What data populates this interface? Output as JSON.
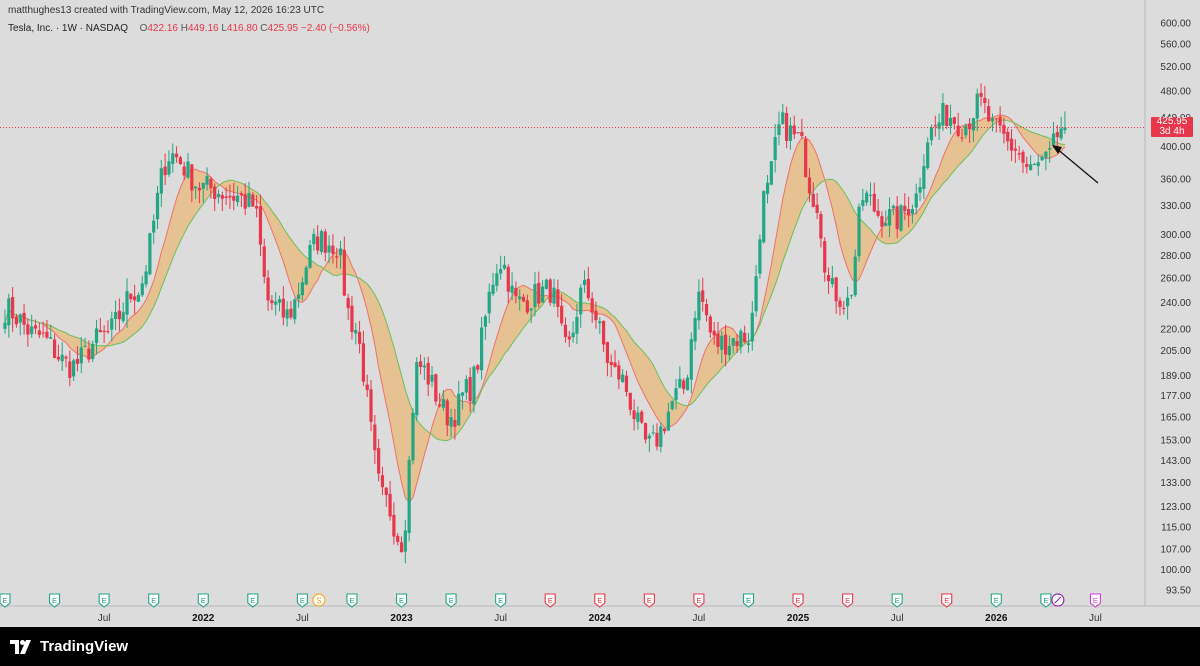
{
  "header": {
    "created": "matthughes13 created with TradingView.com, May 12, 2026 16:23 UTC",
    "symbol": "Tesla, Inc. · 1W · NASDAQ",
    "o_label": "O",
    "o_value": "422.16",
    "h_label": "H",
    "h_value": "449.16",
    "l_label": "L",
    "l_value": "416.80",
    "c_label": "C",
    "c_value": "425.95",
    "change": "−2.40 (−0.56%)"
  },
  "price_tag": {
    "price": "425.95",
    "countdown": "3d 4h"
  },
  "brand": {
    "name": "TradingView"
  },
  "colors": {
    "up": "#22a683",
    "down": "#e8364a",
    "band_fill": "#e9b97a",
    "fast_ma": "#f0706a",
    "slow_ma": "#6bbf5a",
    "background": "#dcdcdc"
  },
  "chart_data": {
    "type": "candlestick",
    "title": "Tesla, Inc. · 1W · NASDAQ",
    "scale": "log",
    "y_ticks": [
      "600.00",
      "560.00",
      "520.00",
      "480.00",
      "440.00",
      "400.00",
      "360.00",
      "330.00",
      "300.00",
      "280.00",
      "260.00",
      "240.00",
      "220.00",
      "205.00",
      "189.00",
      "177.00",
      "165.00",
      "153.00",
      "143.00",
      "133.00",
      "123.00",
      "115.00",
      "107.00",
      "100.00",
      "93.50"
    ],
    "x_ticks": [
      {
        "label": "Jul",
        "date": "2021-07",
        "bold": false
      },
      {
        "label": "2022",
        "date": "2022-01",
        "bold": true
      },
      {
        "label": "Jul",
        "date": "2022-07",
        "bold": false
      },
      {
        "label": "2023",
        "date": "2023-01",
        "bold": true
      },
      {
        "label": "Jul",
        "date": "2023-07",
        "bold": false
      },
      {
        "label": "2024",
        "date": "2024-01",
        "bold": true
      },
      {
        "label": "Jul",
        "date": "2024-07",
        "bold": false
      },
      {
        "label": "2025",
        "date": "2025-01",
        "bold": true
      },
      {
        "label": "Jul",
        "date": "2025-07",
        "bold": false
      },
      {
        "label": "2026",
        "date": "2026-01",
        "bold": true
      },
      {
        "label": "Jul",
        "date": "2026-07",
        "bold": false
      }
    ],
    "x_range": [
      "2021-01",
      "2026-10"
    ],
    "y_range": [
      93.5,
      600
    ],
    "last_price": 425.95,
    "annotation": "arrow pointing at the latest candle",
    "price_waypoints": [
      {
        "date": "2021-01",
        "price": 235
      },
      {
        "date": "2021-03",
        "price": 215
      },
      {
        "date": "2021-05",
        "price": 195
      },
      {
        "date": "2021-07",
        "price": 215
      },
      {
        "date": "2021-09",
        "price": 250
      },
      {
        "date": "2021-11",
        "price": 390
      },
      {
        "date": "2022-01",
        "price": 350
      },
      {
        "date": "2022-03",
        "price": 340
      },
      {
        "date": "2022-04",
        "price": 330
      },
      {
        "date": "2022-05",
        "price": 240
      },
      {
        "date": "2022-06",
        "price": 230
      },
      {
        "date": "2022-08",
        "price": 295
      },
      {
        "date": "2022-09",
        "price": 290
      },
      {
        "date": "2022-10",
        "price": 225
      },
      {
        "date": "2022-12",
        "price": 125
      },
      {
        "date": "2023-01",
        "price": 110
      },
      {
        "date": "2023-02",
        "price": 195
      },
      {
        "date": "2023-04",
        "price": 165
      },
      {
        "date": "2023-05",
        "price": 180
      },
      {
        "date": "2023-07",
        "price": 275
      },
      {
        "date": "2023-08",
        "price": 240
      },
      {
        "date": "2023-10",
        "price": 250
      },
      {
        "date": "2023-11",
        "price": 205
      },
      {
        "date": "2023-12",
        "price": 250
      },
      {
        "date": "2024-02",
        "price": 190
      },
      {
        "date": "2024-04",
        "price": 150
      },
      {
        "date": "2024-06",
        "price": 180
      },
      {
        "date": "2024-07",
        "price": 245
      },
      {
        "date": "2024-08",
        "price": 210
      },
      {
        "date": "2024-10",
        "price": 215
      },
      {
        "date": "2024-11",
        "price": 340
      },
      {
        "date": "2024-12",
        "price": 430
      },
      {
        "date": "2025-01",
        "price": 410
      },
      {
        "date": "2025-02",
        "price": 340
      },
      {
        "date": "2025-03",
        "price": 250
      },
      {
        "date": "2025-04",
        "price": 240
      },
      {
        "date": "2025-05",
        "price": 340
      },
      {
        "date": "2025-06",
        "price": 320
      },
      {
        "date": "2025-07",
        "price": 315
      },
      {
        "date": "2025-08",
        "price": 335
      },
      {
        "date": "2025-09",
        "price": 420
      },
      {
        "date": "2025-10",
        "price": 445
      },
      {
        "date": "2025-11",
        "price": 430
      },
      {
        "date": "2025-12",
        "price": 460
      },
      {
        "date": "2026-01",
        "price": 420
      },
      {
        "date": "2026-02",
        "price": 400
      },
      {
        "date": "2026-03",
        "price": 370
      },
      {
        "date": "2026-04",
        "price": 380
      },
      {
        "date": "2026-05",
        "price": 425.95
      }
    ],
    "event_markers": [
      {
        "date": "2021-01",
        "type": "E",
        "color": "green"
      },
      {
        "date": "2021-04",
        "type": "E",
        "color": "green"
      },
      {
        "date": "2021-07",
        "type": "E",
        "color": "green"
      },
      {
        "date": "2021-10",
        "type": "E",
        "color": "green"
      },
      {
        "date": "2022-01",
        "type": "E",
        "color": "green"
      },
      {
        "date": "2022-04",
        "type": "E",
        "color": "green"
      },
      {
        "date": "2022-07",
        "type": "E",
        "color": "green"
      },
      {
        "date": "2022-08",
        "type": "S",
        "color": "orange"
      },
      {
        "date": "2022-10",
        "type": "E",
        "color": "green"
      },
      {
        "date": "2023-01",
        "type": "E",
        "color": "green"
      },
      {
        "date": "2023-04",
        "type": "E",
        "color": "green"
      },
      {
        "date": "2023-07",
        "type": "E",
        "color": "green"
      },
      {
        "date": "2023-10",
        "type": "E",
        "color": "red"
      },
      {
        "date": "2024-01",
        "type": "E",
        "color": "red"
      },
      {
        "date": "2024-04",
        "type": "E",
        "color": "red"
      },
      {
        "date": "2024-07",
        "type": "E",
        "color": "red"
      },
      {
        "date": "2024-10",
        "type": "E",
        "color": "green"
      },
      {
        "date": "2025-01",
        "type": "E",
        "color": "red"
      },
      {
        "date": "2025-04",
        "type": "E",
        "color": "red"
      },
      {
        "date": "2025-07",
        "type": "E",
        "color": "green"
      },
      {
        "date": "2025-10",
        "type": "E",
        "color": "red"
      },
      {
        "date": "2026-01",
        "type": "E",
        "color": "green"
      },
      {
        "date": "2026-04",
        "type": "E",
        "color": "green"
      },
      {
        "date": "2026-04",
        "type": "split",
        "color": "purple"
      },
      {
        "date": "2026-07",
        "type": "E",
        "color": "magenta"
      }
    ]
  }
}
